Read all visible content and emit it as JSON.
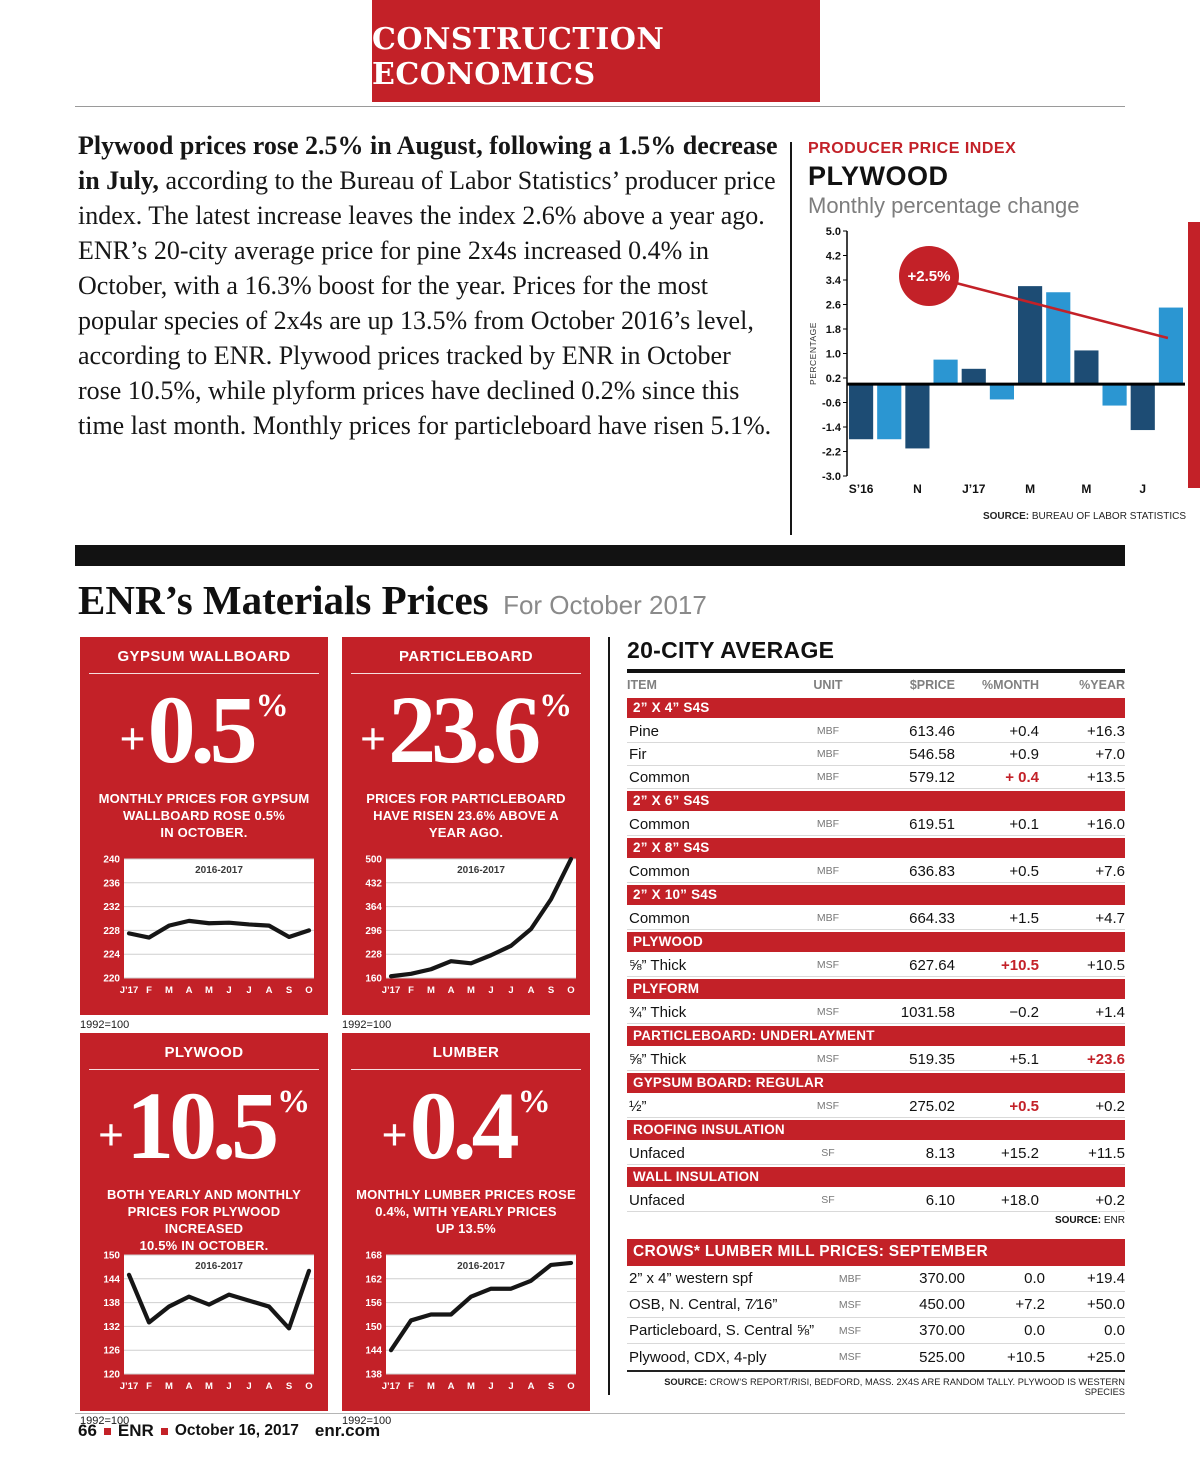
{
  "theme": {
    "red": "#c32128",
    "bar_dark": "#1d4c74",
    "bar_light": "#2b96d2"
  },
  "page": {
    "masthead": "CONSTRUCTION ECONOMICS",
    "footer": {
      "page_num": "66",
      "brand": "ENR",
      "date": "October 16, 2017",
      "site": "enr.com"
    }
  },
  "article": {
    "lead_bold": "Plywood prices rose 2.5% in August, following a 1.5% decrease in July,",
    "body": " according to the Bureau of Labor Statistics’ producer price index. The latest increase leaves the index 2.6% above a year ago. ENR’s 20-city average price for pine 2x4s increased 0.4% in October, with a 16.3% boost for the year. Prices for the most popular species of 2x4s are up 13.5% from October 2016’s level, according to ENR. Plywood prices tracked by ENR in October rose 10.5%, while plyform prices have declined 0.2% since this time last month. Monthly prices for particleboard have risen 5.1%."
  },
  "ppi": {
    "kicker": "PRODUCER PRICE INDEX",
    "title": "PLYWOOD",
    "subtitle": "Monthly percentage change",
    "source": {
      "label": "SOURCE:",
      "text": "BUREAU OF LABOR STATISTICS"
    }
  },
  "section": {
    "title": "ENR’s Materials Prices",
    "subtitle": "For October 2017"
  },
  "cards": [
    {
      "title": "GYPSUM WALLBOARD",
      "sign": "+",
      "value": "0.5",
      "pct": "%",
      "desc": "MONTHLY PRICES FOR GYPSUM\nWALLBOARD ROSE 0.5%\nIN OCTOBER.",
      "base": "1992=100",
      "chart_id": "gypsum"
    },
    {
      "title": "PARTICLEBOARD",
      "sign": "+",
      "value": "23.6",
      "pct": "%",
      "desc": "PRICES FOR PARTICLEBOARD\nHAVE RISEN 23.6% ABOVE A\nYEAR AGO.",
      "base": "1992=100",
      "chart_id": "particleboard"
    },
    {
      "title": "PLYWOOD",
      "sign": "+",
      "value": "10.5",
      "pct": "%",
      "desc": "BOTH YEARLY AND MONTHLY\nPRICES FOR PLYWOOD INCREASED\n10.5% IN OCTOBER.",
      "base": "1992=100",
      "chart_id": "plywood"
    },
    {
      "title": "LUMBER",
      "sign": "+",
      "value": "0.4",
      "pct": "%",
      "desc": "MONTHLY LUMBER PRICES ROSE\n0.4%, WITH YEARLY PRICES\nUP 13.5%",
      "base": "1992=100",
      "chart_id": "lumber"
    }
  ],
  "city_table": {
    "title": "20-CITY AVERAGE",
    "columns": [
      "ITEM",
      "UNIT",
      "$PRICE",
      "%MONTH",
      "%YEAR"
    ],
    "sections": [
      {
        "header": "2” X 4” S4S",
        "rows": [
          {
            "item": "Pine",
            "unit": "MBF",
            "price": "613.46",
            "month": "+0.4",
            "year": "+16.3"
          },
          {
            "item": "Fir",
            "unit": "MBF",
            "price": "546.58",
            "month": "+0.9",
            "year": "+7.0"
          },
          {
            "item": "Common",
            "unit": "MBF",
            "price": "579.12",
            "month": "+ 0.4",
            "month_hl": true,
            "year": "+13.5"
          }
        ]
      },
      {
        "header": "2” X 6” S4S",
        "rows": [
          {
            "item": "Common",
            "unit": "MBF",
            "price": "619.51",
            "month": "+0.1",
            "year": "+16.0"
          }
        ]
      },
      {
        "header": "2” X 8” S4S",
        "rows": [
          {
            "item": "Common",
            "unit": "MBF",
            "price": "636.83",
            "month": "+0.5",
            "year": "+7.6"
          }
        ]
      },
      {
        "header": "2” X 10” S4S",
        "rows": [
          {
            "item": "Common",
            "unit": "MBF",
            "price": "664.33",
            "month": "+1.5",
            "year": "+4.7"
          }
        ]
      },
      {
        "header": "PLYWOOD",
        "rows": [
          {
            "item": "⅝” Thick",
            "unit": "MSF",
            "price": "627.64",
            "month": "+10.5",
            "month_hl": true,
            "year": "+10.5"
          }
        ]
      },
      {
        "header": "PLYFORM",
        "rows": [
          {
            "item": "¾” Thick",
            "unit": "MSF",
            "price": "1031.58",
            "month": "−0.2",
            "year": "+1.4"
          }
        ]
      },
      {
        "header": "PARTICLEBOARD: UNDERLAYMENT",
        "rows": [
          {
            "item": "⅝” Thick",
            "unit": "MSF",
            "price": "519.35",
            "month": "+5.1",
            "year": "+23.6",
            "year_hl": true
          }
        ]
      },
      {
        "header": "GYPSUM BOARD: REGULAR",
        "rows": [
          {
            "item": "½”",
            "unit": "MSF",
            "price": "275.02",
            "month": "+0.5",
            "month_hl": true,
            "year": "+0.2"
          }
        ]
      },
      {
        "header": "ROOFING INSULATION",
        "rows": [
          {
            "item": "Unfaced",
            "unit": "SF",
            "price": "8.13",
            "month": "+15.2",
            "year": "+11.5"
          }
        ]
      },
      {
        "header": "WALL INSULATION",
        "rows": [
          {
            "item": "Unfaced",
            "unit": "SF",
            "price": "6.10",
            "month": "+18.0",
            "year": "+0.2"
          }
        ]
      }
    ],
    "source": {
      "label": "SOURCE:",
      "text": "ENR"
    }
  },
  "crows_table": {
    "title": "CROWS* LUMBER MILL PRICES:  SEPTEMBER",
    "rows": [
      {
        "item": "2” x 4” western spf",
        "unit": "MBF",
        "price": "370.00",
        "month": "0.0",
        "year": "+19.4"
      },
      {
        "item": "OSB, N. Central, 7⁄16”",
        "unit": "MSF",
        "price": "450.00",
        "month": "+7.2",
        "year": "+50.0"
      },
      {
        "item": "Particleboard, S. Central ⅝”",
        "unit": "MSF",
        "price": "370.00",
        "month": "0.0",
        "year": "0.0"
      },
      {
        "item": "Plywood, CDX, 4-ply",
        "unit": "MSF",
        "price": "525.00",
        "month": "+10.5",
        "year": "+25.0"
      }
    ],
    "source": {
      "label": "SOURCE:",
      "text": "CROW’S REPORT/RISI, BEDFORD, MASS. 2X4S ARE RANDOM TALLY. PLYWOOD IS WESTERN SPECIES"
    }
  },
  "chart_data": [
    {
      "id": "ppi",
      "type": "bar",
      "title": "PLYWOOD",
      "subtitle": "Monthly percentage change",
      "ylabel": "PERCENTAGE",
      "ylim": [
        -3.0,
        5.0
      ],
      "yticks": [
        5.0,
        4.2,
        3.4,
        2.6,
        1.8,
        1.0,
        0.2,
        -0.6,
        -1.4,
        -2.2,
        -3.0
      ],
      "x": [
        "S’16",
        "O",
        "N",
        "D",
        "J’17",
        "F",
        "M",
        "A",
        "M",
        "J",
        "J",
        "A"
      ],
      "xtick_labels": [
        "S’16",
        "N",
        "J’17",
        "M",
        "M",
        "J"
      ],
      "values": [
        -1.8,
        -1.8,
        -2.1,
        0.8,
        0.5,
        -0.5,
        3.2,
        3.0,
        1.1,
        -0.7,
        -1.5,
        2.5
      ],
      "annotation": "+2.5%",
      "colors": [
        "#1d4c74",
        "#2b96d2"
      ],
      "accent": "#c32128",
      "legend": "none",
      "grid": false
    },
    {
      "id": "gypsum",
      "type": "line",
      "note": "2016-2017",
      "base": "1992=100",
      "ylim": [
        220,
        240
      ],
      "yticks": [
        240,
        236,
        232,
        228,
        224,
        220
      ],
      "x": [
        "J’17",
        "F",
        "M",
        "A",
        "M",
        "J",
        "J",
        "A",
        "S",
        "O"
      ],
      "values": [
        227.5,
        226.8,
        228.8,
        229.6,
        229.2,
        229.3,
        229.0,
        228.8,
        226.9,
        228.0
      ]
    },
    {
      "id": "particleboard",
      "type": "line",
      "note": "2016-2017",
      "base": "1992=100",
      "ylim": [
        160,
        500
      ],
      "yticks": [
        500,
        432,
        364,
        296,
        228,
        160
      ],
      "x": [
        "J’17",
        "F",
        "M",
        "A",
        "M",
        "J",
        "J",
        "A",
        "S",
        "O"
      ],
      "values": [
        165,
        172,
        185,
        208,
        202,
        225,
        252,
        300,
        385,
        500
      ]
    },
    {
      "id": "plywood",
      "type": "line",
      "note": "2016-2017",
      "base": "1992=100",
      "ylim": [
        120,
        150
      ],
      "yticks": [
        150,
        144,
        138,
        132,
        126,
        120
      ],
      "x": [
        "J’17",
        "F",
        "M",
        "A",
        "M",
        "J",
        "J",
        "A",
        "S",
        "O"
      ],
      "values": [
        145,
        133,
        137,
        139.5,
        137.5,
        140,
        138.5,
        137,
        131.5,
        146
      ]
    },
    {
      "id": "lumber",
      "type": "line",
      "note": "2016-2017",
      "base": "1992=100",
      "ylim": [
        138,
        168
      ],
      "yticks": [
        168,
        162,
        156,
        150,
        144,
        138
      ],
      "x": [
        "J’17",
        "F",
        "M",
        "A",
        "M",
        "J",
        "J",
        "A",
        "S",
        "O"
      ],
      "values": [
        144,
        151.5,
        153,
        153,
        157.5,
        159.5,
        159.5,
        161.5,
        165.5,
        166
      ]
    }
  ]
}
